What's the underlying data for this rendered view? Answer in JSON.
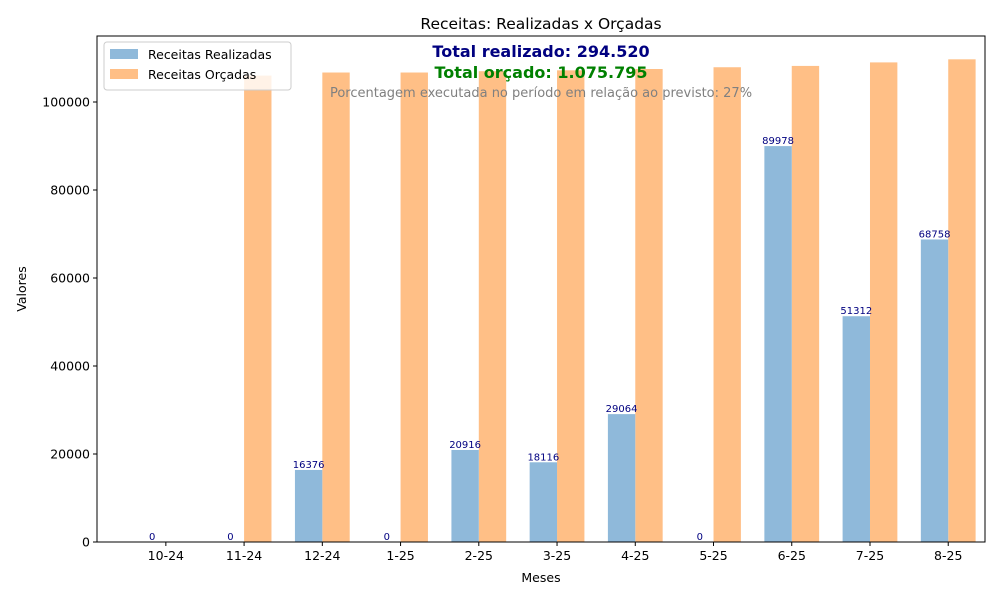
{
  "chart_data": {
    "type": "bar",
    "title": "Receitas: Realizadas x Orçadas",
    "xlabel": "Meses",
    "ylabel": "Valores",
    "categories": [
      "10-24",
      "11-24",
      "12-24",
      "1-25",
      "2-25",
      "3-25",
      "4-25",
      "5-25",
      "6-25",
      "7-25",
      "8-25"
    ],
    "ylim": [
      0,
      115000
    ],
    "yticks": [
      0,
      20000,
      40000,
      60000,
      80000,
      100000
    ],
    "legend_position": "top-left",
    "grid": false,
    "series": [
      {
        "name": "Receitas Realizadas",
        "color": "#8fb9da",
        "values": [
          0,
          0,
          16376,
          0,
          20916,
          18116,
          29064,
          0,
          89978,
          51312,
          68758
        ],
        "labels": [
          "0",
          "0",
          "16376",
          "0",
          "20916",
          "18116",
          "29064",
          "0",
          "89978",
          "51312",
          "68758"
        ]
      },
      {
        "name": "Receitas Orçadas",
        "color": "#ffbf86",
        "values": [
          0,
          106000,
          106700,
          106700,
          107000,
          107200,
          107500,
          107900,
          108200,
          109000,
          109700
        ]
      }
    ],
    "annotations": {
      "total_realizado": {
        "text": "Total realizado: 294.520",
        "color": "#000080"
      },
      "total_orcado": {
        "text": "Total orçado: 1.075.795",
        "color": "#008000"
      },
      "percentage_note": {
        "text": "Porcentagem executada no período em relação ao previsto: 27%",
        "color": "#808080"
      }
    }
  }
}
